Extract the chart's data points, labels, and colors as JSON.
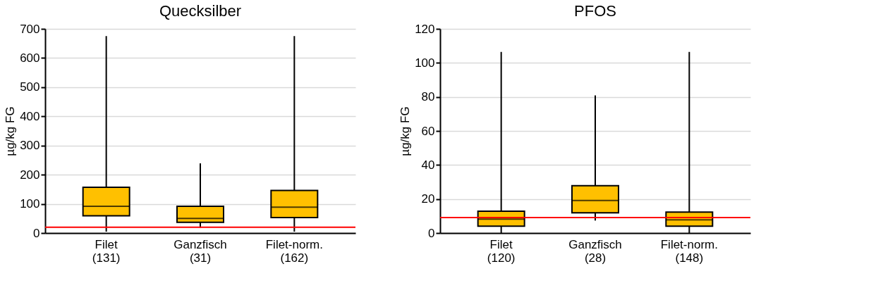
{
  "chart_data": [
    {
      "type": "box",
      "title": "Quecksilber",
      "ylabel": "µg/kg FG",
      "categories": [
        "Filet\n(131)",
        "Ganzfisch\n(31)",
        "Filet-norm.\n(162)"
      ],
      "series": [
        {
          "color": "#ffc000",
          "boxes": [
            {
              "low": 5,
              "q1": 59,
              "median": 92,
              "q3": 157,
              "high": 675
            },
            {
              "low": 18,
              "q1": 37,
              "median": 50,
              "q3": 92,
              "high": 239
            },
            {
              "low": 5,
              "q1": 53,
              "median": 89,
              "q3": 146,
              "high": 675
            }
          ]
        }
      ],
      "ylim": [
        0,
        700
      ],
      "yticks": [
        0,
        100,
        200,
        300,
        400,
        500,
        600,
        700
      ],
      "grid": "y",
      "ref_lines": [
        {
          "axis": "y",
          "value": 20,
          "color": "#ff0000"
        }
      ]
    },
    {
      "type": "box",
      "title": "PFOS",
      "ylabel": "µg/kg FG",
      "categories": [
        "Filet\n(120)",
        "Ganzfisch\n(28)",
        "Filet-norm.\n(148)"
      ],
      "series": [
        {
          "color": "#ffc000",
          "boxes": [
            {
              "low": 0,
              "q1": 4,
              "median": 8.2,
              "q3": 12.8,
              "high": 106.5
            },
            {
              "low": 7.3,
              "q1": 11.9,
              "median": 19.1,
              "q3": 27.8,
              "high": 80.9
            },
            {
              "low": 0,
              "q1": 4,
              "median": 7.8,
              "q3": 12.3,
              "high": 106.5
            }
          ]
        }
      ],
      "ylim": [
        0,
        120
      ],
      "yticks": [
        0,
        20,
        40,
        60,
        80,
        100,
        120
      ],
      "grid": "y",
      "ref_lines": [
        {
          "axis": "y",
          "value": 9.1,
          "color": "#ff0000"
        }
      ]
    }
  ]
}
